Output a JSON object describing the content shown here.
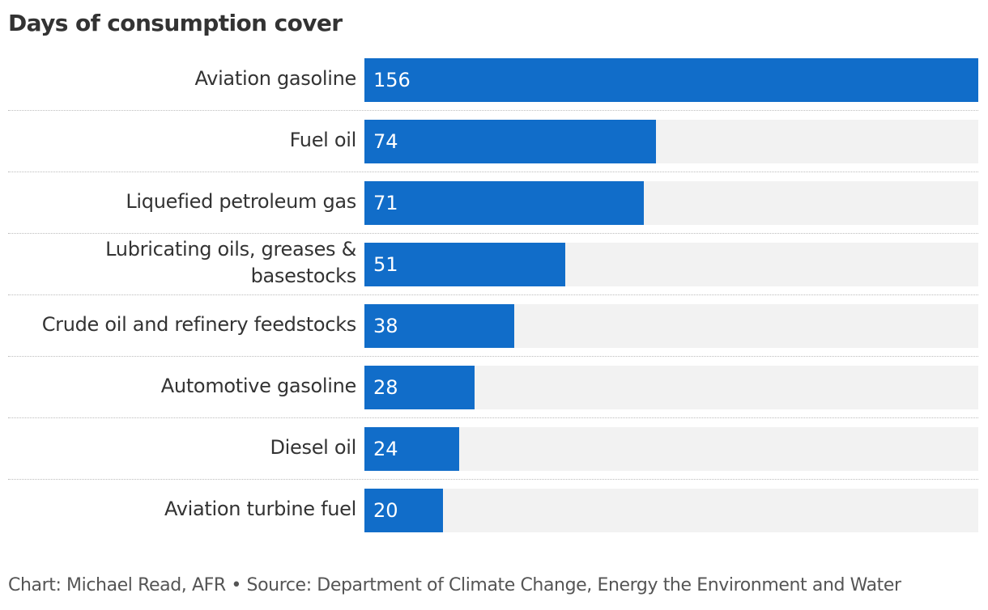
{
  "chart_data": {
    "type": "bar",
    "orientation": "horizontal",
    "title": "Days of consumption cover",
    "categories": [
      [
        "Aviation gasoline"
      ],
      [
        "Fuel oil"
      ],
      [
        "Liquefied petroleum gas"
      ],
      [
        "Lubricating oils, greases &",
        "basestocks"
      ],
      [
        "Crude oil and refinery feedstocks"
      ],
      [
        "Automotive gasoline"
      ],
      [
        "Diesel oil"
      ],
      [
        "Aviation turbine fuel"
      ]
    ],
    "values": [
      156,
      74,
      71,
      51,
      38,
      28,
      24,
      20
    ],
    "xlim": [
      0,
      156
    ],
    "data_labels": [
      "156",
      "74",
      "71",
      "51",
      "38",
      "28",
      "24",
      "20"
    ],
    "grid": false,
    "colors": {
      "bar": "#116dc9",
      "track": "#f2f2f2",
      "value_text": "#ffffff"
    }
  },
  "footer": {
    "source": "Chart: Michael Read, AFR • Source: Department of Climate Change, Energy the Environment and Water"
  }
}
